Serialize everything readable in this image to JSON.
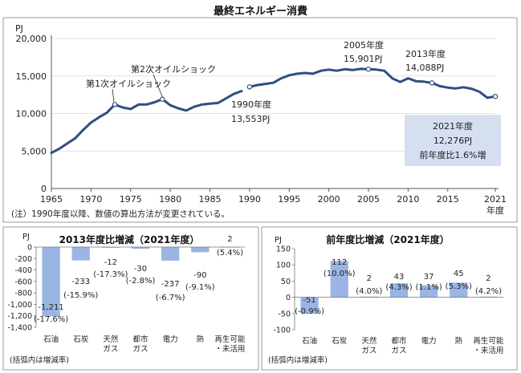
{
  "title": "最終エネルギー消費",
  "chart_data": [
    {
      "type": "line",
      "title": "",
      "ylabel": "PJ",
      "xlabel": "年度",
      "ylim": [
        0,
        20000
      ],
      "yticks": [
        0,
        5000,
        10000,
        15000,
        20000
      ],
      "yticks_text": [
        "0",
        "5,000",
        "10,000",
        "15,000",
        "20,000"
      ],
      "xticks": [
        "1965",
        "1970",
        "1975",
        "1980",
        "1985",
        "1990",
        "1995",
        "2000",
        "2005",
        "2010",
        "2015",
        "2021"
      ],
      "series": [
        {
          "segment": "1965-1989",
          "x": [
            1965,
            1966,
            1967,
            1968,
            1969,
            1970,
            1971,
            1972,
            1973,
            1974,
            1975,
            1976,
            1977,
            1978,
            1979,
            1980,
            1981,
            1982,
            1983,
            1984,
            1985,
            1986,
            1987,
            1988,
            1989
          ],
          "values": [
            4750,
            5300,
            6000,
            6700,
            7800,
            8800,
            9500,
            10100,
            11200,
            10800,
            10600,
            11200,
            11200,
            11500,
            11900,
            11100,
            10700,
            10400,
            10900,
            11200,
            11300,
            11400,
            12000,
            12600,
            13000
          ]
        },
        {
          "segment": "1990-2021",
          "x": [
            1990,
            1991,
            1992,
            1993,
            1994,
            1995,
            1996,
            1997,
            1998,
            1999,
            2000,
            2001,
            2002,
            2003,
            2004,
            2005,
            2006,
            2007,
            2008,
            2009,
            2010,
            2011,
            2012,
            2013,
            2014,
            2015,
            2016,
            2017,
            2018,
            2019,
            2020,
            2021
          ],
          "values": [
            13553,
            13800,
            13950,
            14100,
            14700,
            15100,
            15300,
            15400,
            15300,
            15700,
            15850,
            15700,
            15900,
            15800,
            15950,
            15901,
            15850,
            15700,
            14700,
            14200,
            14700,
            14300,
            14250,
            14088,
            13650,
            13450,
            13350,
            13500,
            13300,
            12900,
            12100,
            12276
          ]
        }
      ],
      "annotations": [
        {
          "text": "第1次オイルショック",
          "x": 1973
        },
        {
          "text": "第2次オイルショック",
          "x": 1979
        },
        {
          "text": "1990年度",
          "text2": "13,553PJ",
          "x": 1990
        },
        {
          "text": "2005年度",
          "text2": "15,901PJ",
          "x": 2005
        },
        {
          "text": "2013年度",
          "text2": "14,088PJ",
          "x": 2013
        }
      ],
      "callout": {
        "line1": "2021年度",
        "line2": "12,276PJ",
        "line3": "前年度比1.6%増",
        "color": "#d6dff0"
      },
      "note": "(注）1990年度以降、数値の算出方法が変更されている。",
      "line_color": "#2f4f7f"
    },
    {
      "type": "bar",
      "title": "2013年度比増減（2021年度）",
      "ylabel": "PJ",
      "ylim": [
        -1400,
        0
      ],
      "yticks": [
        0,
        -200,
        -400,
        -600,
        -800,
        -1000,
        -1200,
        -1400
      ],
      "yticks_text": [
        "0",
        "-200",
        "-400",
        "-600",
        "-800",
        "-1,000",
        "-1,200",
        "-1,400"
      ],
      "categories": [
        "石油",
        "石炭",
        "天然ガス",
        "都市ガス",
        "電力",
        "熱",
        "再生可能・未活用"
      ],
      "category_lines": [
        [
          "石油"
        ],
        [
          "石炭"
        ],
        [
          "天然",
          "ガス"
        ],
        [
          "都市",
          "ガス"
        ],
        [
          "電力"
        ],
        [
          "熱"
        ],
        [
          "再生可能",
          "・未活用"
        ]
      ],
      "values": [
        -1211,
        -233,
        -12,
        -30,
        -237,
        -90,
        2
      ],
      "value_labels": [
        "-1,211",
        "-233",
        "-12",
        "-30",
        "-237",
        "-90",
        "2"
      ],
      "rate_labels": [
        "(-17.6%)",
        "(-15.9%)",
        "(-17.3%)",
        "(-2.8%)",
        "(-6.7%)",
        "(-9.1%)",
        "(5.4%)"
      ],
      "note": "(括弧内は増減率)",
      "bar_color": "#9ab5e3"
    },
    {
      "type": "bar",
      "title": "前年度比増減（2021年度）",
      "ylabel": "PJ",
      "ylim": [
        -100,
        150
      ],
      "yticks": [
        150,
        100,
        50,
        0,
        -50,
        -100
      ],
      "yticks_text": [
        "150",
        "100",
        "50",
        "0",
        "-50",
        "-100"
      ],
      "categories": [
        "石油",
        "石炭",
        "天然ガス",
        "都市ガス",
        "電力",
        "熱",
        "再生可能・未活用"
      ],
      "category_lines": [
        [
          "石油"
        ],
        [
          "石炭"
        ],
        [
          "天然",
          "ガス"
        ],
        [
          "都市",
          "ガス"
        ],
        [
          "電力"
        ],
        [
          "熱"
        ],
        [
          "再生可能",
          "・未活用"
        ]
      ],
      "values": [
        -51,
        112,
        2,
        43,
        37,
        45,
        2
      ],
      "value_labels": [
        "-51",
        "112",
        "2",
        "43",
        "37",
        "45",
        "2"
      ],
      "rate_labels": [
        "(-0.9%)",
        "(10.0%)",
        "(4.0%)",
        "(4.3%)",
        "(1.1%)",
        "(5.3%)",
        "(4.2%)"
      ],
      "note": "(括弧内は増減率)",
      "bar_color": "#9ab5e3"
    }
  ]
}
